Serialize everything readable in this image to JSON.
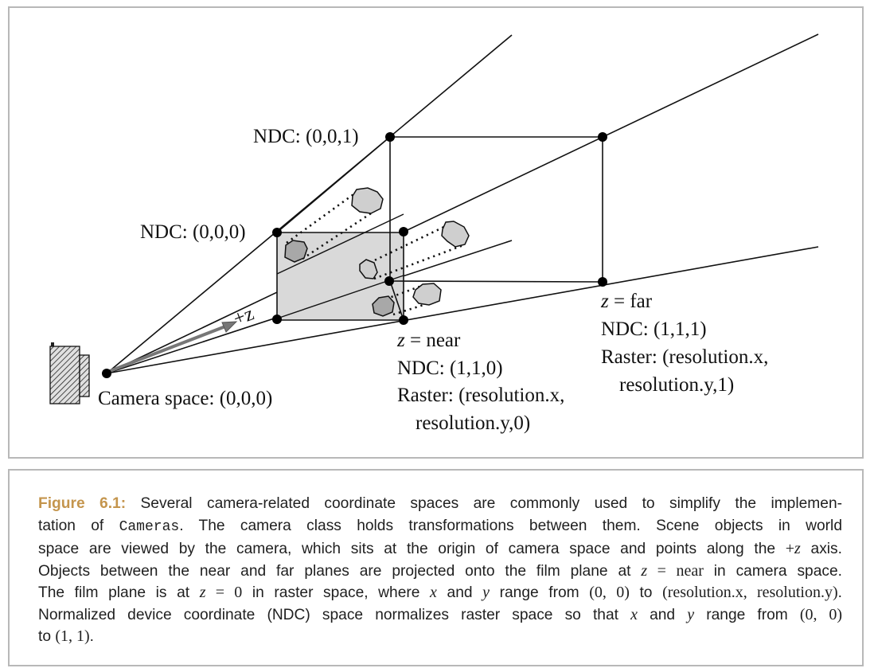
{
  "diagram": {
    "labels": {
      "ndc_001": "NDC: (0,0,1)",
      "ndc_000": "NDC: (0,0,0)",
      "plus_z": "+z",
      "camera_space": "Camera space: (0,0,0)",
      "near_z": "z",
      "near_eq": " = near",
      "near_ndc": "NDC: (1,1,0)",
      "near_raster_1": "Raster: (resolution.x,",
      "near_raster_2": "resolution.y,0)",
      "far_z": "z",
      "far_eq": " = far",
      "far_ndc": "NDC: (1,1,1)",
      "far_raster_1": "Raster: (resolution.x,",
      "far_raster_2": "resolution.y,1)"
    },
    "colors": {
      "line": "#111111",
      "near_plane_fill": "#d9d9d9",
      "blob_fill": "#cfcfcf",
      "blob_dark_fill": "#a8a8a8",
      "caption_accent": "#c4954d",
      "border": "#b8b8b8"
    },
    "icons": [
      "camera-icon"
    ]
  },
  "caption": {
    "figure_label": "Figure 6.1:",
    "l1": " Several camera-related coordinate spaces are commonly used to simplify the implemen-",
    "l2a": "tation of ",
    "l2_code": "Cameras",
    "l2b": ". The camera class holds transformations between them. Scene objects in world",
    "l3a": "space are viewed by the camera, which sits at the origin of camera space and points along the ",
    "l3_math": "+",
    "l3_z": "z",
    "l3b": " axis.",
    "l4a": "Objects between the near and far planes are projected onto the film plane at ",
    "l4_z": "z",
    "l4_eq": " = near",
    "l4b": " in camera space.",
    "l5a": "The film plane is at ",
    "l5_z": "z",
    "l5_eq": " = 0",
    "l5b": " in raster space, where ",
    "l5_x": "x",
    "l5c": " and ",
    "l5_y": "y",
    "l5d": " range from ",
    "l5_r1": "(0, 0)",
    "l5e": " to ",
    "l5_r2": "(resolution.x, resolution.y)",
    "l5f": ".",
    "l6a": "Normalized device coordinate (NDC) space normalizes raster space so that ",
    "l6_x": "x",
    "l6b": " and ",
    "l6_y": "y",
    "l6c": " range from ",
    "l6_r1": "(0, 0)",
    "l7a": "to ",
    "l7_r2": "(1, 1)",
    "l7b": "."
  }
}
